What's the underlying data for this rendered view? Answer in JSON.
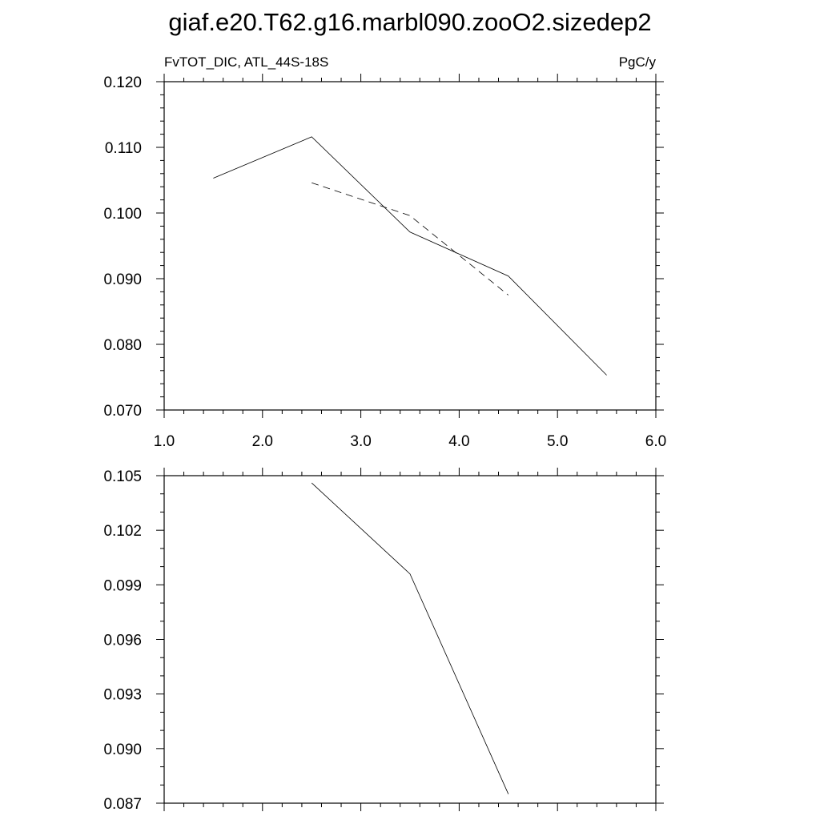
{
  "figure_title": "giaf.e20.T62.g16.marbl090.zooO2.sizedep2",
  "chart_data": [
    {
      "type": "line",
      "left_label": "FvTOT_DIC, ATL_44S-18S",
      "right_label": "PgC/y",
      "xlim": [
        1.0,
        6.0
      ],
      "ylim": [
        0.07,
        0.12
      ],
      "xticks": [
        "1.0",
        "2.0",
        "3.0",
        "4.0",
        "5.0",
        "6.0"
      ],
      "yticks": [
        "0.070",
        "0.080",
        "0.090",
        "0.100",
        "0.110",
        "0.120"
      ],
      "x_tick_labels_shown": true,
      "series": [
        {
          "style": "solid",
          "x": [
            1.5,
            2.5,
            3.5,
            4.5,
            5.5
          ],
          "y": [
            0.1053,
            0.1116,
            0.0971,
            0.0904,
            0.0753
          ]
        },
        {
          "style": "dashed",
          "x": [
            2.5,
            3.5,
            4.5
          ],
          "y": [
            0.1046,
            0.0996,
            0.0875
          ]
        }
      ]
    },
    {
      "type": "line",
      "xlim": [
        1.0,
        6.0
      ],
      "ylim": [
        0.087,
        0.105
      ],
      "xticks": [
        "1.0",
        "2.0",
        "3.0",
        "4.0",
        "5.0",
        "6.0"
      ],
      "yticks": [
        "0.087",
        "0.090",
        "0.093",
        "0.096",
        "0.099",
        "0.102",
        "0.105"
      ],
      "x_tick_labels_shown": false,
      "series": [
        {
          "style": "solid",
          "x": [
            2.5,
            3.5,
            4.5
          ],
          "y": [
            0.1046,
            0.0996,
            0.0875
          ]
        }
      ]
    }
  ]
}
